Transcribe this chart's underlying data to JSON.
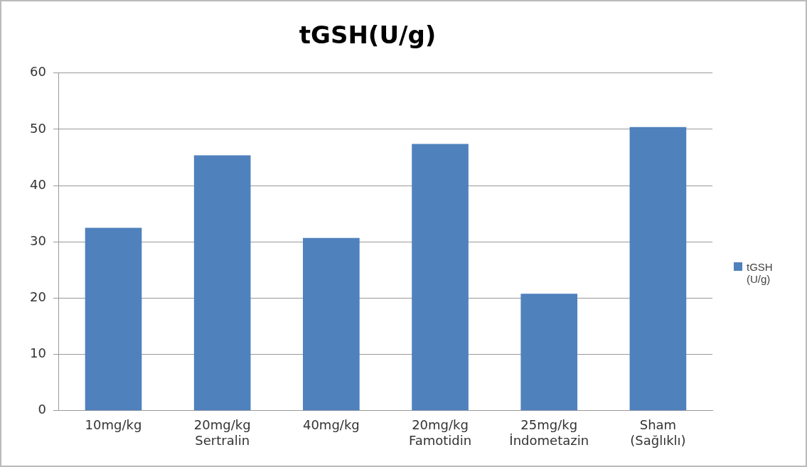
{
  "chart_data": {
    "type": "bar",
    "title": "tGSH(U/g)",
    "categories": [
      "10mg/kg",
      "20mg/kg\nSertralin",
      "40mg/kg",
      "20mg/kg\nFamotidin",
      "25mg/kg\nİndometazin",
      "Sham\n(Sağlıklı)"
    ],
    "series": [
      {
        "name": "tGSH (U/g)",
        "color": "#4f81bd",
        "values": [
          32.5,
          45.4,
          30.7,
          47.4,
          20.8,
          50.4
        ]
      }
    ],
    "ylim": [
      0,
      60
    ],
    "yticks": [
      0,
      10,
      20,
      30,
      40,
      50,
      60
    ],
    "grid": "y",
    "legend": "right"
  }
}
